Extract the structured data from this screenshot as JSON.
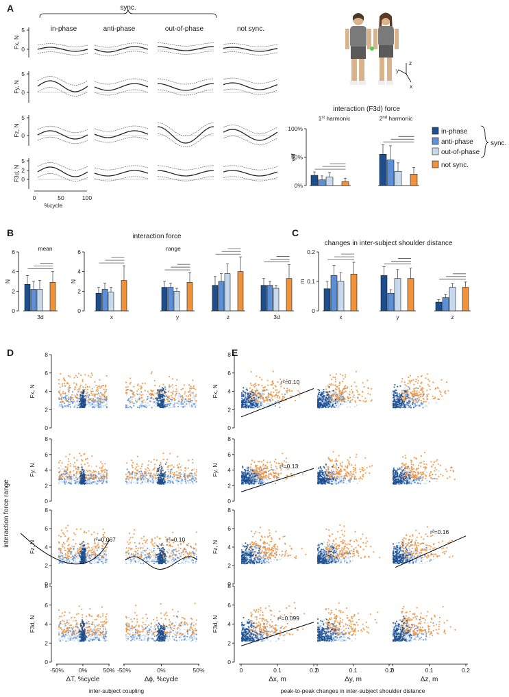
{
  "panel_letters": [
    "A",
    "B",
    "C",
    "D",
    "E"
  ],
  "colors": {
    "in_phase": "#1f4e8c",
    "anti_phase": "#5b8fd6",
    "out_of_phase": "#c6d9ee",
    "not_sync": "#f0923b"
  },
  "panelA": {
    "sync_label": "sync.",
    "column_titles": [
      "in-phase",
      "anti-phase",
      "out-of-phase",
      "not sync."
    ],
    "row_labels": [
      "Fx, N",
      "Fy, N",
      "Fz, N",
      "F3d, N"
    ],
    "ticks_top": [
      "5",
      "0"
    ],
    "ticks_bottom": [
      "5",
      "2",
      "0"
    ],
    "x_ticks": [
      "0",
      "50",
      "100"
    ],
    "x_label": "%cycle",
    "axes_labels": [
      "y",
      "z",
      "x"
    ]
  },
  "panelA_right": {
    "title": "interaction (F3d) force",
    "harmonic1_num": "1",
    "harmonic1_sup": "st",
    "harmonic1_word": " harmonic",
    "harmonic2_num": "2",
    "harmonic2_sup": "nd",
    "harmonic2_word": " harmonic",
    "ylabel": "vaf",
    "yticks": [
      "100%",
      "50%",
      "0%"
    ],
    "legend": [
      "in-phase",
      "anti-phase",
      "out-of-phase",
      "not sync."
    ],
    "legend_brace_label": "sync."
  },
  "panelB": {
    "title": "interaction force",
    "sub_mean": "mean",
    "sub_range": "range",
    "ylabel": "N",
    "yticks": [
      "6",
      "4",
      "2",
      "0"
    ],
    "groups": [
      "3d",
      "x",
      "y",
      "z",
      "3d"
    ]
  },
  "panelC": {
    "title": "changes in inter-subject shoulder distance",
    "ylabel": "m",
    "yticks": [
      "0.2",
      "0.1",
      "0"
    ],
    "groups": [
      "x",
      "y",
      "z"
    ]
  },
  "panelD": {
    "xlabels": [
      "ΔT, %cycle",
      "Δϕ, %cycle"
    ],
    "xticks": [
      "-50%",
      "0%",
      "50%"
    ],
    "bottom_label": "inter-subject coupling",
    "shared_ylabel": "interaction force range",
    "r2": [
      "r²=0.067",
      "r²=0.10"
    ]
  },
  "panelE": {
    "xlabels": [
      "Δx, m",
      "Δy, m",
      "Δz, m"
    ],
    "xticks": [
      "0",
      "0.1",
      "0.2"
    ],
    "bottom_label": "peak-to-peak changes in inter-subject shoulder distance",
    "r2": [
      "r²=0.10",
      "r²=0.13",
      "r²=0.16",
      "r²=0.099"
    ]
  },
  "scatter_rows": [
    "Fx, N",
    "Fy, N",
    "Fz, N",
    "F3d, N"
  ],
  "scatter_yticks": [
    "8",
    "6",
    "4",
    "2",
    "0"
  ],
  "chart_data": [
    {
      "type": "bar",
      "title": "interaction (F3d) force",
      "ylabel": "vaf",
      "ylim": [
        0,
        100
      ],
      "categories": [
        "1st harmonic",
        "2nd harmonic"
      ],
      "series": [
        {
          "name": "in-phase",
          "values": [
            18,
            55
          ]
        },
        {
          "name": "anti-phase",
          "values": [
            10,
            45
          ]
        },
        {
          "name": "out-of-phase",
          "values": [
            15,
            25
          ]
        },
        {
          "name": "not sync.",
          "values": [
            7,
            20
          ]
        }
      ],
      "errors": [
        [
          6,
          7,
          8,
          6
        ],
        [
          17,
          25,
          15,
          12
        ]
      ]
    },
    {
      "type": "bar",
      "title": "interaction force (mean, range)",
      "ylabel": "N",
      "ylim": [
        0,
        6
      ],
      "categories": [
        "mean 3d",
        "range x",
        "range y",
        "range z",
        "range 3d"
      ],
      "series": [
        {
          "name": "in-phase",
          "values": [
            2.7,
            1.8,
            2.4,
            2.6,
            2.6
          ]
        },
        {
          "name": "anti-phase",
          "values": [
            2.2,
            2.2,
            2.4,
            3.0,
            2.6
          ]
        },
        {
          "name": "out-of-phase",
          "values": [
            2.2,
            1.9,
            2.0,
            3.8,
            2.3
          ]
        },
        {
          "name": "not sync.",
          "values": [
            2.9,
            3.1,
            2.9,
            4.0,
            3.3
          ]
        }
      ],
      "errors": [
        [
          0.9,
          0.6,
          0.6,
          0.9,
          0.7
        ],
        [
          0.8,
          0.6,
          0.4,
          0.8,
          0.4
        ],
        [
          0.9,
          0.5,
          0.3,
          1.0,
          0.3
        ],
        [
          1.1,
          1.5,
          1.0,
          1.5,
          1.4
        ]
      ]
    },
    {
      "type": "bar",
      "title": "changes in inter-subject shoulder distance",
      "ylabel": "m",
      "ylim": [
        0,
        0.2
      ],
      "categories": [
        "x",
        "y",
        "z"
      ],
      "series": [
        {
          "name": "in-phase",
          "values": [
            0.075,
            0.12,
            0.03
          ]
        },
        {
          "name": "anti-phase",
          "values": [
            0.12,
            0.06,
            0.045
          ]
        },
        {
          "name": "out-of-phase",
          "values": [
            0.1,
            0.11,
            0.08
          ]
        },
        {
          "name": "not sync.",
          "values": [
            0.125,
            0.11,
            0.08
          ]
        }
      ],
      "errors": [
        [
          0.025,
          0.03,
          0.008
        ],
        [
          0.035,
          0.012,
          0.01
        ],
        [
          0.03,
          0.03,
          0.012
        ],
        [
          0.04,
          0.035,
          0.018
        ]
      ]
    },
    {
      "type": "scatter",
      "title": "interaction force range vs inter-subject coupling and shoulder distance changes",
      "ylabel": "interaction force range",
      "ylim": [
        0,
        8
      ],
      "note": "dense point clouds per group; regression fits annotated",
      "fits": [
        {
          "panel": "D",
          "row": "Fz, N",
          "x": "ΔT, %cycle",
          "r2": 0.067
        },
        {
          "panel": "D",
          "row": "Fz, N",
          "x": "Δϕ, %cycle",
          "r2": 0.1
        },
        {
          "panel": "E",
          "row": "Fx, N",
          "x": "Δx, m",
          "r2": 0.1
        },
        {
          "panel": "E",
          "row": "Fy, N",
          "x": "Δx, m",
          "r2": 0.13
        },
        {
          "panel": "E",
          "row": "Fz, N",
          "x": "Δz, m",
          "r2": 0.16
        },
        {
          "panel": "E",
          "row": "F3d, N",
          "x": "Δx, m",
          "r2": 0.099
        }
      ]
    }
  ]
}
